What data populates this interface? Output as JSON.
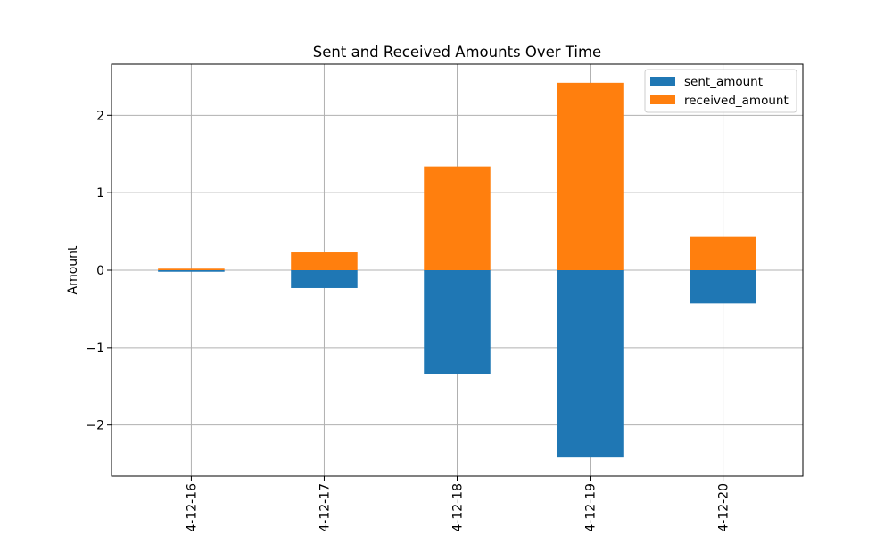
{
  "chart_data": {
    "type": "bar",
    "stacked": true,
    "title": "Sent and Received Amounts Over Time",
    "xlabel": "",
    "ylabel": "Amount",
    "categories": [
      "4-12-16",
      "4-12-17",
      "4-12-18",
      "4-12-19",
      "4-12-20"
    ],
    "series": [
      {
        "name": "sent_amount",
        "color": "#1f77b4",
        "values": [
          -0.02,
          -0.23,
          -1.34,
          -2.42,
          -0.43
        ]
      },
      {
        "name": "received_amount",
        "color": "#ff7f0e",
        "values": [
          0.02,
          0.23,
          1.34,
          2.42,
          0.43
        ]
      }
    ],
    "ylim": [
      -2.66,
      2.66
    ],
    "yticks": [
      -2,
      -1,
      0,
      1,
      2
    ],
    "ytick_labels": [
      "−2",
      "−1",
      "0",
      "1",
      "2"
    ],
    "grid": true,
    "legend_position": "top-right"
  }
}
